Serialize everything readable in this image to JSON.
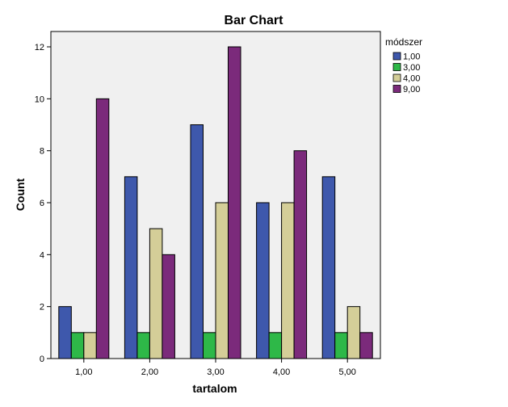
{
  "chart_data": {
    "type": "bar",
    "title": "Bar Chart",
    "xlabel": "tartalom",
    "ylabel": "Count",
    "categories": [
      "1,00",
      "2,00",
      "3,00",
      "4,00",
      "5,00"
    ],
    "ylim": [
      0,
      12
    ],
    "yticks": [
      "0",
      "2",
      "4",
      "6",
      "8",
      "10",
      "12"
    ],
    "ytick_values": [
      0,
      2,
      4,
      6,
      8,
      10,
      12
    ],
    "grid": false,
    "legend": {
      "title": "módszer",
      "placement": "right-top"
    },
    "series": [
      {
        "name": "1,00",
        "color": "#3E58AC",
        "values": [
          2,
          7,
          9,
          6,
          7
        ]
      },
      {
        "name": "3,00",
        "color": "#2EB848",
        "values": [
          1,
          1,
          1,
          1,
          1
        ]
      },
      {
        "name": "4,00",
        "color": "#D4CE98",
        "values": [
          1,
          5,
          6,
          6,
          2
        ]
      },
      {
        "name": "9,00",
        "color": "#7B2A7B",
        "values": [
          10,
          4,
          12,
          8,
          1
        ]
      }
    ],
    "plot_background": "#F0F0F0"
  }
}
